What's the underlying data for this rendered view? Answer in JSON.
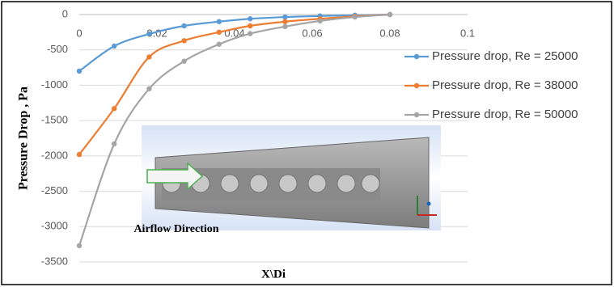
{
  "chart_data": {
    "type": "line",
    "x_label": "X\\Di",
    "y_label": "Pressure Drop , Pa",
    "annotation": "Airflow Direction",
    "x": [
      0,
      0.009,
      0.018,
      0.027,
      0.036,
      0.044,
      0.053,
      0.062,
      0.071,
      0.08
    ],
    "series": [
      {
        "name": "Pressure drop, Re = 25000",
        "color": "#5b9bd5",
        "values": [
          -800,
          -446,
          -275,
          -160,
          -100,
          -60,
          -35,
          -20,
          -10,
          0
        ]
      },
      {
        "name": "Pressure drop, Re = 38000",
        "color": "#ed7d31",
        "values": [
          -1980,
          -1330,
          -600,
          -370,
          -250,
          -160,
          -100,
          -60,
          -25,
          0
        ]
      },
      {
        "name": "Pressure drop, Re = 50000",
        "color": "#a5a5a5",
        "values": [
          -3270,
          -1830,
          -1050,
          -660,
          -420,
          -270,
          -170,
          -90,
          -35,
          0
        ]
      }
    ],
    "xlim": [
      0,
      0.1
    ],
    "xticks": [
      0,
      0.02,
      0.04,
      0.06,
      0.08,
      0.1
    ],
    "ylim": [
      -3500,
      0
    ],
    "yticks": [
      0,
      -500,
      -1000,
      -1500,
      -2000,
      -2500,
      -3000,
      -3500
    ],
    "grid": true,
    "legend": "right"
  }
}
